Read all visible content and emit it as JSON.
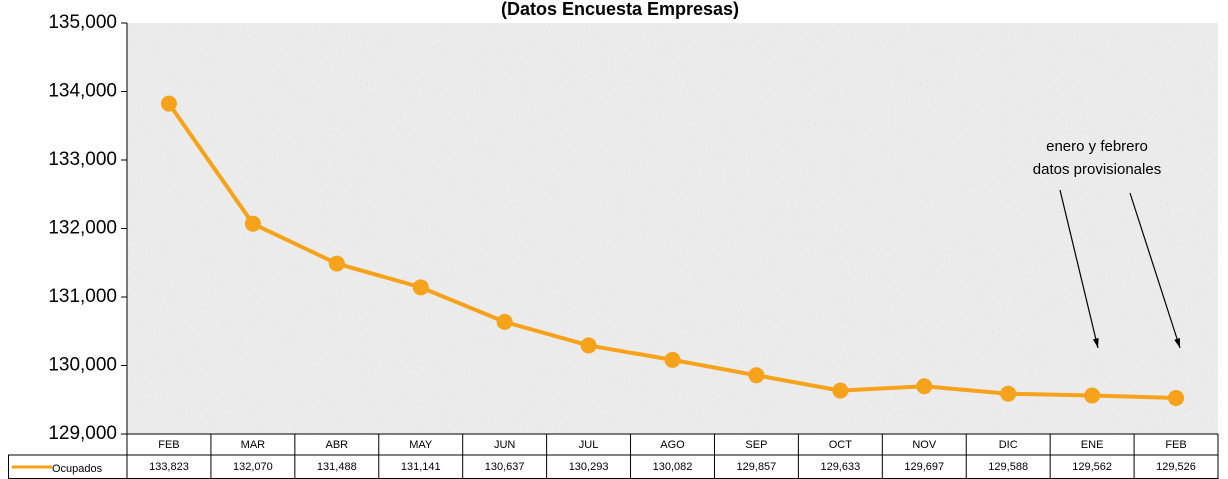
{
  "chart_data": {
    "type": "line",
    "title": "(Datos Encuesta Empresas)",
    "categories": [
      "FEB",
      "MAR",
      "ABR",
      "MAY",
      "JUN",
      "JUL",
      "AGO",
      "SEP",
      "OCT",
      "NOV",
      "DIC",
      "ENE",
      "FEB"
    ],
    "series": [
      {
        "name": "Ocupados",
        "color": "#f7a21b",
        "values": [
          133823,
          132070,
          131488,
          131141,
          130637,
          130293,
          130082,
          129857,
          129633,
          129697,
          129588,
          129562,
          129526
        ],
        "value_labels": [
          "133,823",
          "132,070",
          "131,488",
          "131,141",
          "130,637",
          "130,293",
          "130,082",
          "129,857",
          "129,633",
          "129,697",
          "129,588",
          "129,562",
          "129,526"
        ]
      }
    ],
    "ylim": [
      129000,
      135000
    ],
    "yticks": [
      {
        "value": 129000,
        "label": "129,000"
      },
      {
        "value": 130000,
        "label": "130,000"
      },
      {
        "value": 131000,
        "label": "131,000"
      },
      {
        "value": 132000,
        "label": "132,000"
      },
      {
        "value": 133000,
        "label": "133,000"
      },
      {
        "value": 134000,
        "label": "134,000"
      },
      {
        "value": 135000,
        "label": "135,000"
      }
    ],
    "annotation": [
      "enero y febrero",
      "datos provisionales"
    ]
  }
}
